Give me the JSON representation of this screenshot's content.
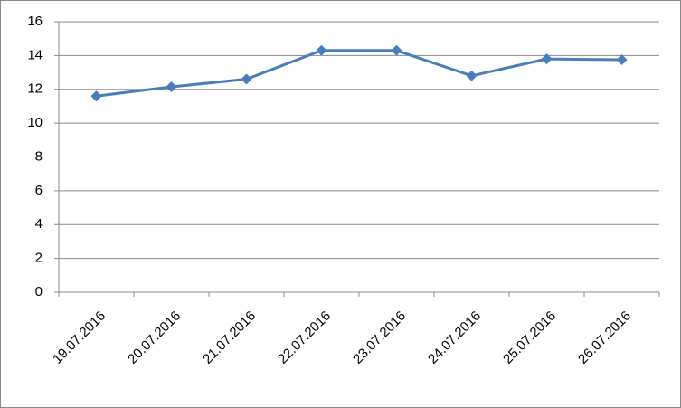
{
  "chart_data": {
    "type": "line",
    "categories": [
      "19.07.2016",
      "20.07.2016",
      "21.07.2016",
      "22.07.2016",
      "23.07.2016",
      "24.07.2016",
      "25.07.2016",
      "26.07.2016"
    ],
    "series": [
      {
        "color": "#4a7ebb",
        "values": [
          11.6,
          12.15,
          12.6,
          14.3,
          14.3,
          12.8,
          13.8,
          13.75
        ]
      }
    ],
    "ylim": [
      0,
      16
    ],
    "yticks": [
      0,
      2,
      4,
      6,
      8,
      10,
      12,
      14,
      16
    ],
    "grid": true
  }
}
